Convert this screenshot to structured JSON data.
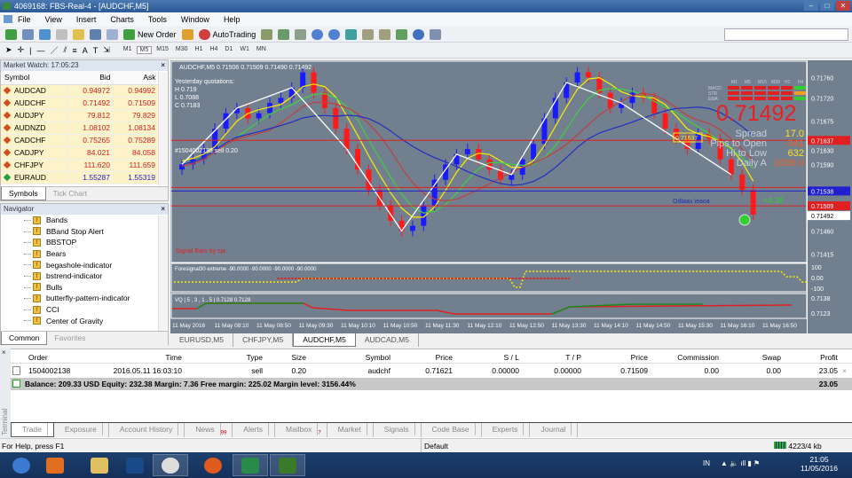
{
  "window": {
    "title": "4069168: FBS-Real-4 - [AUDCHF,M5]"
  },
  "menu": [
    "File",
    "View",
    "Insert",
    "Charts",
    "Tools",
    "Window",
    "Help"
  ],
  "toolbar": {
    "new_order": "New Order",
    "autotrading": "AutoTrading",
    "timeframes": [
      "M1",
      "M5",
      "M15",
      "M30",
      "H1",
      "H4",
      "D1",
      "W1",
      "MN"
    ],
    "active_tf": "M5"
  },
  "market_watch": {
    "title": "Market Watch: 17:05:23",
    "columns": [
      "Symbol",
      "Bid",
      "Ask"
    ],
    "rows": [
      {
        "symbol": "AUDCAD",
        "bid": "0.94972",
        "ask": "0.94992",
        "dir": "down"
      },
      {
        "symbol": "AUDCHF",
        "bid": "0.71492",
        "ask": "0.71509",
        "dir": "down"
      },
      {
        "symbol": "AUDJPY",
        "bid": "79.812",
        "ask": "79.829",
        "dir": "down"
      },
      {
        "symbol": "AUDNZD",
        "bid": "1.08102",
        "ask": "1.08134",
        "dir": "down"
      },
      {
        "symbol": "CADCHF",
        "bid": "0.75265",
        "ask": "0.75289",
        "dir": "down"
      },
      {
        "symbol": "CADJPY",
        "bid": "84.021",
        "ask": "84.058",
        "dir": "down"
      },
      {
        "symbol": "CHFJPY",
        "bid": "111.620",
        "ask": "111.659",
        "dir": "down"
      },
      {
        "symbol": "EURAUD",
        "bid": "1.55287",
        "ask": "1.55319",
        "dir": "up"
      }
    ],
    "tabs": [
      "Symbols",
      "Tick Chart"
    ]
  },
  "navigator": {
    "title": "Navigator",
    "items": [
      "Bands",
      "BBand Stop Alert",
      "BBSTOP",
      "Bears",
      "begashole-indicator",
      "bstrend-indicator",
      "Bulls",
      "butterfly-pattern-indicator",
      "CCI",
      "Center of Gravity"
    ],
    "tabs": [
      "Common",
      "Favorites"
    ]
  },
  "chart": {
    "header": "AUDCHF,M5  0.71506 0.71509 0.71490 0.71492",
    "yesterday": {
      "title": "Yesterday quotations:",
      "h": "H 0.719",
      "l": "L 0.7088",
      "c": "C 0.7183"
    },
    "order_label": "#1504002138 sell 0.20",
    "signal_label": "Signal Bars by cja",
    "big_price": "0.71492",
    "panel_tf": [
      "M1",
      "M5",
      "M15",
      "M30",
      "H1",
      "H4"
    ],
    "panel_rows": [
      "MACD",
      "STR",
      "EMA"
    ],
    "spread_label": "Spread",
    "spread": "17.0",
    "pips_label": "Pips to Open",
    "pips": "-341",
    "hilo_label": "Hi to Low",
    "hilo": "632",
    "daily_label": "Daily A",
    "daily": "1009.0",
    "price_tag": "0.71637",
    "countdown": "<4:38",
    "odlabel": "Odlaau ieaoa",
    "price_axis": [
      "0.71760",
      "0.71720",
      "0.71675",
      "0.71630",
      "0.71590",
      "0.71460",
      "0.71415"
    ],
    "axis_tags": {
      "red_top": "0.71637",
      "blue": "0.71538",
      "red_bottom": "0.71509",
      "bid": "0.71492"
    },
    "ind1": {
      "label": "Foresignal30 extreme -90.0000 -90.0000 -90.0000 -90.0000",
      "axis": [
        "100",
        "0.00",
        "-100"
      ]
    },
    "ind2": {
      "label": "VQ | 5 , 3 , 1 , 5 | 0.7128 0.7128",
      "axis": [
        "0.7138",
        "0.7123"
      ]
    },
    "time_axis": [
      "11 May 2016",
      "11 May 08:10",
      "11 May 08:50",
      "11 May 09:30",
      "11 May 10:10",
      "11 May 10:50",
      "11 May 11:30",
      "11 May 12:10",
      "11 May 12:50",
      "11 May 13:30",
      "11 May 14:10",
      "11 May 14:50",
      "11 May 15:30",
      "11 May 16:10",
      "11 May 16:50"
    ],
    "tabs": [
      "EURUSD,M5",
      "CHFJPY,M5",
      "AUDCHF,M5",
      "AUDCAD,M5"
    ],
    "active_tab": "AUDCHF,M5",
    "colors": {
      "bull": "#1a1aff",
      "bear": "#ff1a1a",
      "bg": "#717f8f"
    }
  },
  "chart_data": {
    "type": "candlestick",
    "ylim": [
      0.714,
      0.7179
    ],
    "closes": [
      0.7159,
      0.716,
      0.7162,
      0.7166,
      0.7169,
      0.717,
      0.7168,
      0.7169,
      0.7171,
      0.7172,
      0.7174,
      0.7177,
      0.7173,
      0.717,
      0.7166,
      0.7162,
      0.7158,
      0.7154,
      0.7151,
      0.7148,
      0.7146,
      0.7147,
      0.7151,
      0.7156,
      0.7159,
      0.7161,
      0.7162,
      0.716,
      0.7158,
      0.7156,
      0.7157,
      0.716,
      0.7163,
      0.7168,
      0.7172,
      0.7175,
      0.7177,
      0.7176,
      0.7173,
      0.717,
      0.7171,
      0.7173,
      0.7172,
      0.7169,
      0.7166,
      0.7164,
      0.7162,
      0.7165,
      0.7164,
      0.716,
      0.7157,
      0.7154,
      0.71492
    ]
  },
  "terminal": {
    "columns": [
      "Order",
      "Time",
      "Type",
      "Size",
      "Symbol",
      "Price",
      "S / L",
      "T / P",
      "Price",
      "Commission",
      "Swap",
      "Profit"
    ],
    "row": [
      "1504002138",
      "2016.05.11 16:03:10",
      "sell",
      "0.20",
      "audchf",
      "0.71621",
      "0.00000",
      "0.00000",
      "0.71509",
      "0.00",
      "0.00",
      "23.05"
    ],
    "balance": "Balance: 209.33 USD  Equity: 232.38  Margin: 7.36  Free margin: 225.02  Margin level: 3156.44%",
    "total": "23.05",
    "tabs": [
      {
        "label": "Trade"
      },
      {
        "label": "Exposure"
      },
      {
        "label": "Account History"
      },
      {
        "label": "News",
        "badge": "99"
      },
      {
        "label": "Alerts"
      },
      {
        "label": "Mailbox",
        "badge": "7"
      },
      {
        "label": "Market"
      },
      {
        "label": "Signals"
      },
      {
        "label": "Code Base"
      },
      {
        "label": "Experts"
      },
      {
        "label": "Journal"
      }
    ],
    "side_label": "Terminal"
  },
  "status": {
    "help": "For Help, press F1",
    "profile": "Default",
    "traffic": "4223/4 kb"
  },
  "taskbar": {
    "lang": "IN",
    "time": "21:05",
    "date": "11/05/2016",
    "apps": [
      "start",
      "media-player",
      "explorer",
      "photoshop",
      "chrome",
      "firefox",
      "downloader",
      "fbs-terminal"
    ]
  }
}
